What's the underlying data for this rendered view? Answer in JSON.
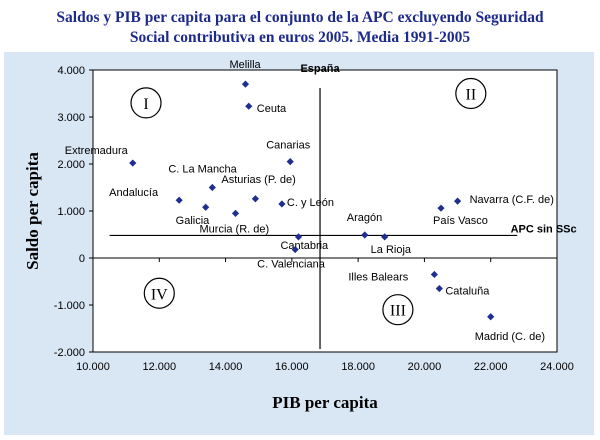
{
  "title_line1": "Saldos y PIB per capita para el conjunto de la APC excluyendo Seguridad",
  "title_line2": "Social contributiva en euros 2005. Media 1991-2005",
  "colors": {
    "title": "#1c2a8c",
    "point": "#1f2f8f",
    "background": "#d9e6f4",
    "plot": "#ffffff"
  },
  "chart_data": {
    "type": "scatter",
    "xlabel": "PIB per capita",
    "ylabel": "Saldo per capita",
    "xlim": [
      10000,
      24000
    ],
    "ylim": [
      -2000,
      4000
    ],
    "x_ticks": [
      10000,
      12000,
      14000,
      16000,
      18000,
      20000,
      22000,
      24000
    ],
    "x_tick_labels": [
      "10.000",
      "12.000",
      "14.000",
      "16.000",
      "18.000",
      "20.000",
      "22.000",
      "24.000"
    ],
    "y_ticks": [
      4000,
      3000,
      2000,
      1000,
      0,
      -1000,
      -2000
    ],
    "y_tick_labels": [
      "4.000",
      "3.000",
      "2.000",
      "1.000",
      "0",
      "-1.000",
      "-2.000"
    ],
    "grid": false,
    "reference_lines": {
      "vertical_label": "España",
      "vertical_x": 16850,
      "horizontal_label": "APC sin SSc",
      "horizontal_y": 480
    },
    "quadrant_labels": [
      "I",
      "II",
      "III",
      "IV"
    ],
    "points": [
      {
        "label": "Melilla",
        "x": 14600,
        "y": 3700
      },
      {
        "label": "Ceuta",
        "x": 14700,
        "y": 3230
      },
      {
        "label": "Extremadura",
        "x": 11200,
        "y": 2020
      },
      {
        "label": "Canarias",
        "x": 15950,
        "y": 2050
      },
      {
        "label": "C. La Mancha",
        "x": 13600,
        "y": 1500
      },
      {
        "label": "Andalucía",
        "x": 12600,
        "y": 1230
      },
      {
        "label": "Asturias (P. de)",
        "x": 14900,
        "y": 1260
      },
      {
        "label": "Galicia",
        "x": 13400,
        "y": 1080
      },
      {
        "label": "Murcia (R. de)",
        "x": 14300,
        "y": 950
      },
      {
        "label": "C. y León",
        "x": 15700,
        "y": 1150
      },
      {
        "label": "Cantabria",
        "x": 16200,
        "y": 450
      },
      {
        "label": "Aragón",
        "x": 18200,
        "y": 490
      },
      {
        "label": "La Rioja",
        "x": 18800,
        "y": 450
      },
      {
        "label": "C. Valenciana",
        "x": 16100,
        "y": 180
      },
      {
        "label": "Navarra (C.F. de)",
        "x": 21000,
        "y": 1210
      },
      {
        "label": "País Vasco",
        "x": 20500,
        "y": 1060
      },
      {
        "label": "Illes Balears",
        "x": 20300,
        "y": -350
      },
      {
        "label": "Cataluña",
        "x": 20450,
        "y": -650
      },
      {
        "label": "Madrid (C. de)",
        "x": 22000,
        "y": -1250
      }
    ]
  }
}
